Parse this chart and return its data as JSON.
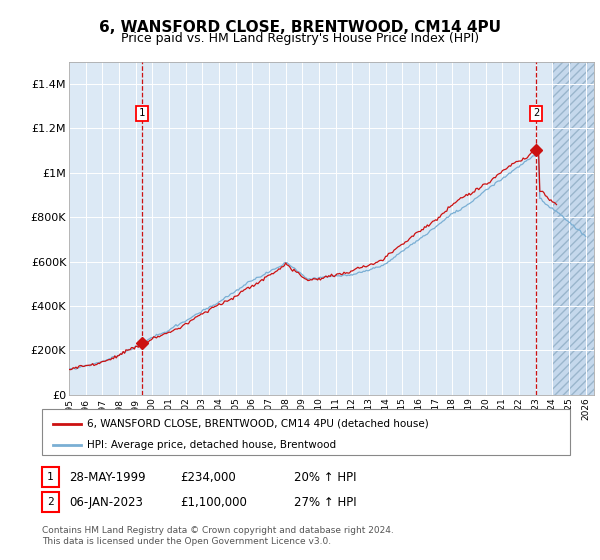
{
  "title": "6, WANSFORD CLOSE, BRENTWOOD, CM14 4PU",
  "subtitle": "Price paid vs. HM Land Registry's House Price Index (HPI)",
  "legend_line1": "6, WANSFORD CLOSE, BRENTWOOD, CM14 4PU (detached house)",
  "legend_line2": "HPI: Average price, detached house, Brentwood",
  "footnote": "Contains HM Land Registry data © Crown copyright and database right 2024.\nThis data is licensed under the Open Government Licence v3.0.",
  "transaction1_date": "28-MAY-1999",
  "transaction1_price": "£234,000",
  "transaction1_hpi": "20% ↑ HPI",
  "transaction2_date": "06-JAN-2023",
  "transaction2_price": "£1,100,000",
  "transaction2_hpi": "27% ↑ HPI",
  "sale1_x": 1999.38,
  "sale1_y": 234000,
  "sale2_x": 2023.02,
  "sale2_y": 1100000,
  "ylim": [
    0,
    1500000
  ],
  "xlim_start": 1995.0,
  "xlim_end": 2026.5,
  "future_shade_start": 2024.0,
  "hpi_color": "#7aafd4",
  "price_color": "#cc1111",
  "background_color": "#dce9f5",
  "future_hatch_color": "#c5d8ec",
  "grid_color": "#ffffff",
  "title_fontsize": 11,
  "subtitle_fontsize": 9,
  "axis_fontsize": 8
}
